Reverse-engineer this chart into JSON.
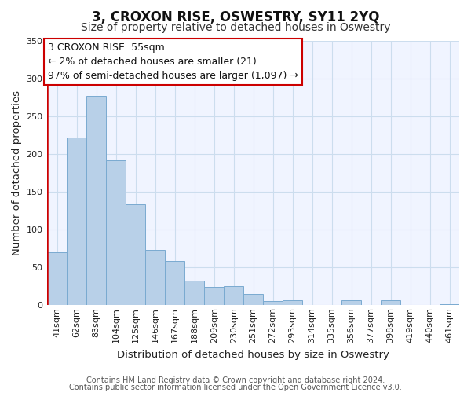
{
  "title": "3, CROXON RISE, OSWESTRY, SY11 2YQ",
  "subtitle": "Size of property relative to detached houses in Oswestry",
  "xlabel": "Distribution of detached houses by size in Oswestry",
  "ylabel": "Number of detached properties",
  "bar_labels": [
    "41sqm",
    "62sqm",
    "83sqm",
    "104sqm",
    "125sqm",
    "146sqm",
    "167sqm",
    "188sqm",
    "209sqm",
    "230sqm",
    "251sqm",
    "272sqm",
    "293sqm",
    "314sqm",
    "335sqm",
    "356sqm",
    "377sqm",
    "398sqm",
    "419sqm",
    "440sqm",
    "461sqm"
  ],
  "bar_values": [
    70,
    222,
    277,
    192,
    133,
    73,
    58,
    33,
    24,
    25,
    15,
    5,
    7,
    0,
    0,
    6,
    0,
    6,
    0,
    0,
    1
  ],
  "bar_color": "#b8d0e8",
  "bar_edge_color": "#7aaad0",
  "highlight_color": "#cc0000",
  "annotation_text": "3 CROXON RISE: 55sqm\n← 2% of detached houses are smaller (21)\n97% of semi-detached houses are larger (1,097) →",
  "annotation_box_facecolor": "#ffffff",
  "annotation_box_edge_color": "#cc0000",
  "ylim": [
    0,
    350
  ],
  "yticks": [
    0,
    50,
    100,
    150,
    200,
    250,
    300,
    350
  ],
  "footer_line1": "Contains HM Land Registry data © Crown copyright and database right 2024.",
  "footer_line2": "Contains public sector information licensed under the Open Government Licence v3.0.",
  "background_color": "#ffffff",
  "plot_bg_color": "#f0f4ff",
  "grid_color": "#ccddee",
  "title_fontsize": 12,
  "subtitle_fontsize": 10,
  "axis_label_fontsize": 9.5,
  "tick_fontsize": 8,
  "annotation_fontsize": 9,
  "footer_fontsize": 7
}
